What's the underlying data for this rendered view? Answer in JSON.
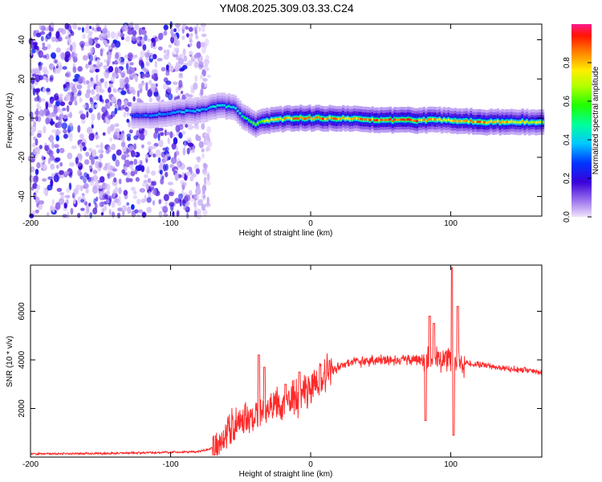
{
  "title": "YM08.2025.309.03.33.C24",
  "chart_data": [
    {
      "type": "heatmap",
      "name": "spectrogram",
      "xlabel": "Height of straight line (km)",
      "ylabel": "Frequency (Hz)",
      "xlim": [
        -200,
        165
      ],
      "ylim": [
        -50,
        48
      ],
      "xticks": [
        -200,
        -100,
        0,
        100
      ],
      "yticks": [
        -40,
        -20,
        0,
        20,
        40
      ],
      "noise_region": {
        "x_range": [
          -200,
          -72
        ],
        "level": 0.15
      },
      "ridge": [
        {
          "x": -125,
          "y": 1,
          "v": 0.28
        },
        {
          "x": -110,
          "y": 2,
          "v": 0.34
        },
        {
          "x": -95,
          "y": 3,
          "v": 0.36
        },
        {
          "x": -80,
          "y": 4,
          "v": 0.38
        },
        {
          "x": -65,
          "y": 7,
          "v": 0.42
        },
        {
          "x": -55,
          "y": 5,
          "v": 0.45
        },
        {
          "x": -48,
          "y": 0,
          "v": 0.5
        },
        {
          "x": -40,
          "y": -3,
          "v": 0.6
        },
        {
          "x": -30,
          "y": -1,
          "v": 0.72
        },
        {
          "x": -15,
          "y": 0,
          "v": 0.82
        },
        {
          "x": 0,
          "y": 0,
          "v": 0.88
        },
        {
          "x": 20,
          "y": 0,
          "v": 0.82
        },
        {
          "x": 45,
          "y": -1,
          "v": 0.86
        },
        {
          "x": 70,
          "y": -1,
          "v": 0.92
        },
        {
          "x": 95,
          "y": -1,
          "v": 0.75
        },
        {
          "x": 120,
          "y": -2,
          "v": 0.85
        },
        {
          "x": 165,
          "y": -2,
          "v": 0.7
        }
      ],
      "colorbar": {
        "label": "Normalized spectral amplitude",
        "range": [
          0,
          1
        ],
        "ticks": [
          0.0,
          0.2,
          0.4,
          0.6,
          0.8
        ]
      }
    },
    {
      "type": "line",
      "name": "snr",
      "color": "#ff2a2a",
      "xlabel": "Height of straight line (km)",
      "ylabel": "SNR (10 * v/v)",
      "xlim": [
        -200,
        165
      ],
      "ylim": [
        0,
        7900
      ],
      "xticks": [
        -200,
        -100,
        0,
        100
      ],
      "yticks": [
        2000,
        4000,
        6000
      ],
      "envelope": [
        {
          "x": -200,
          "y": 130
        },
        {
          "x": -150,
          "y": 150
        },
        {
          "x": -100,
          "y": 200
        },
        {
          "x": -80,
          "y": 220
        },
        {
          "x": -68,
          "y": 400
        },
        {
          "x": -58,
          "y": 1100
        },
        {
          "x": -50,
          "y": 1500
        },
        {
          "x": -40,
          "y": 1700
        },
        {
          "x": -30,
          "y": 2000
        },
        {
          "x": -15,
          "y": 2300
        },
        {
          "x": -5,
          "y": 2600
        },
        {
          "x": 5,
          "y": 3200
        },
        {
          "x": 15,
          "y": 3600
        },
        {
          "x": 30,
          "y": 3900
        },
        {
          "x": 50,
          "y": 4000
        },
        {
          "x": 80,
          "y": 4000
        },
        {
          "x": 100,
          "y": 3950
        },
        {
          "x": 120,
          "y": 3800
        },
        {
          "x": 140,
          "y": 3650
        },
        {
          "x": 165,
          "y": 3500
        }
      ],
      "spikes": [
        {
          "x": -37,
          "y": 4200
        },
        {
          "x": -33,
          "y": 3700
        },
        {
          "x": -18,
          "y": 3000
        },
        {
          "x": -8,
          "y": 3500
        },
        {
          "x": 82,
          "y": 1500
        },
        {
          "x": 85,
          "y": 5800
        },
        {
          "x": 88,
          "y": 5500
        },
        {
          "x": 101,
          "y": 7800
        },
        {
          "x": 102,
          "y": 900
        },
        {
          "x": 105,
          "y": 6200
        }
      ]
    }
  ]
}
